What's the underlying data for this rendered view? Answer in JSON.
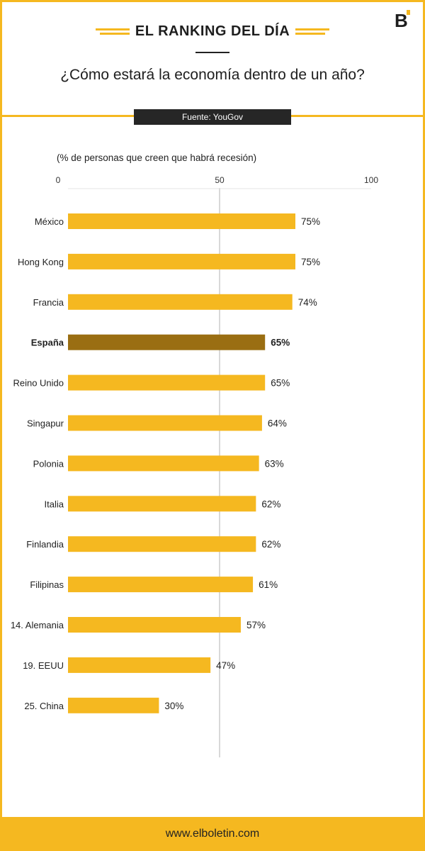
{
  "header": {
    "kicker": "EL RANKING DEL DÍA",
    "title": "¿Cómo estará la economía dentro de un año?",
    "source": "Fuente: YouGov",
    "logo_icon": "b-logo-icon"
  },
  "footer": {
    "url": "www.elboletin.com"
  },
  "colors": {
    "accent": "#f5b820",
    "highlight": "#9a6e12",
    "dark": "#262626"
  },
  "chart_data": {
    "type": "bar",
    "orientation": "horizontal",
    "subtitle": "(% de personas que creen que habrá recesión)",
    "xlim": [
      0,
      100
    ],
    "xticks": [
      0,
      50,
      100
    ],
    "categories": [
      "México",
      "Hong Kong",
      "Francia",
      "España",
      "Reino Unido",
      "Singapur",
      "Polonia",
      "Italia",
      "Finlandia",
      "Filipinas",
      "14. Alemania",
      "19. EEUU",
      "25. China"
    ],
    "values": [
      75,
      75,
      74,
      65,
      65,
      64,
      63,
      62,
      62,
      61,
      57,
      47,
      30
    ],
    "value_labels": [
      "75%",
      "75%",
      "74%",
      "65%",
      "65%",
      "64%",
      "63%",
      "62%",
      "62%",
      "61%",
      "57%",
      "47%",
      "30%"
    ],
    "highlight": "España",
    "grid": "vertical line at 50"
  }
}
